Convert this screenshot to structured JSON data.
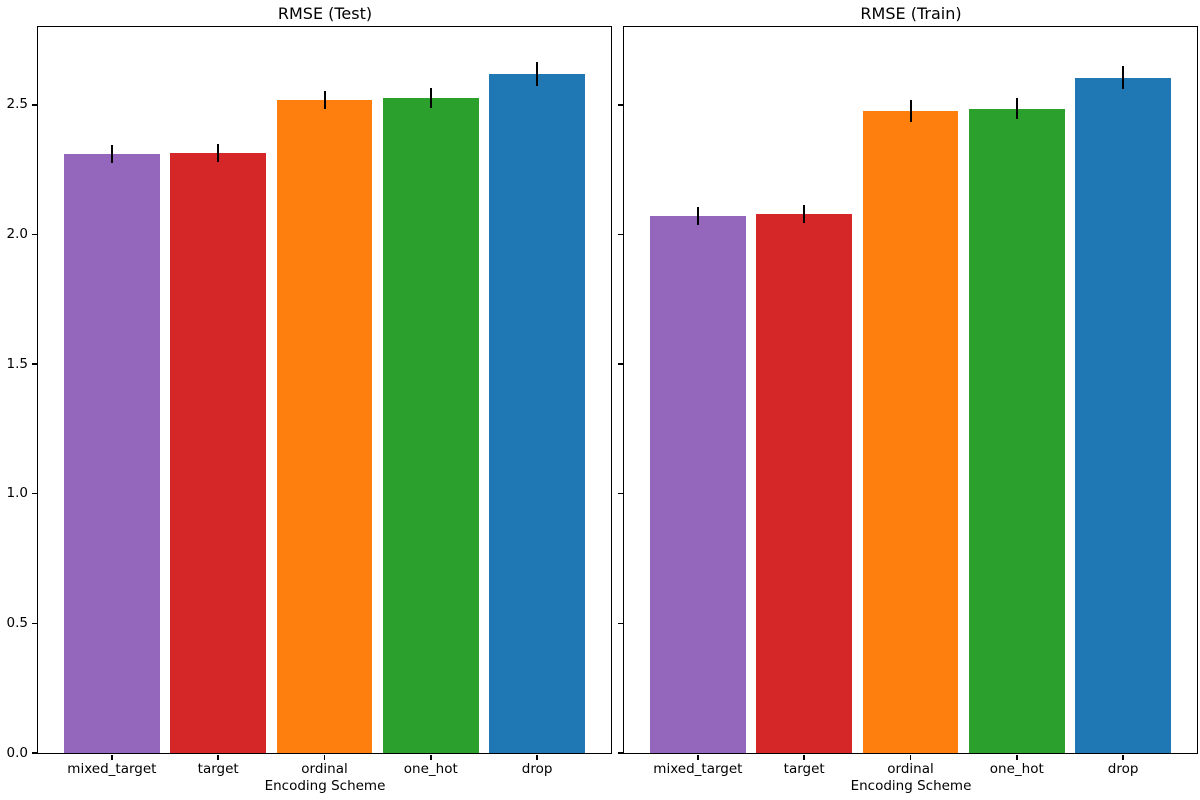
{
  "chart_data": [
    {
      "type": "bar",
      "title": "RMSE (Test)",
      "xlabel": "Encoding Scheme",
      "ylabel": "",
      "categories": [
        "mixed_target",
        "target",
        "ordinal",
        "one_hot",
        "drop"
      ],
      "values": [
        2.31,
        2.315,
        2.52,
        2.525,
        2.62
      ],
      "errors": [
        0.035,
        0.035,
        0.035,
        0.038,
        0.046
      ],
      "bar_colors": [
        "#9467bd",
        "#d62728",
        "#ff7f0e",
        "#2ca02c",
        "#1f77b4"
      ],
      "error_color": "#000000",
      "ylim": [
        0,
        2.8
      ],
      "yticks": [
        "0.0",
        "0.5",
        "1.0",
        "1.5",
        "2.0",
        "2.5"
      ],
      "show_ytick_labels": true,
      "grid": false,
      "legend": null,
      "bar_width_ratio": 0.9
    },
    {
      "type": "bar",
      "title": "RMSE (Train)",
      "xlabel": "Encoding Scheme",
      "ylabel": "",
      "categories": [
        "mixed_target",
        "target",
        "ordinal",
        "one_hot",
        "drop"
      ],
      "values": [
        2.07,
        2.08,
        2.475,
        2.485,
        2.605
      ],
      "errors": [
        0.035,
        0.035,
        0.042,
        0.04,
        0.046
      ],
      "bar_colors": [
        "#9467bd",
        "#d62728",
        "#ff7f0e",
        "#2ca02c",
        "#1f77b4"
      ],
      "error_color": "#000000",
      "ylim": [
        0,
        2.8
      ],
      "yticks": [
        "0.0",
        "0.5",
        "1.0",
        "1.5",
        "2.0",
        "2.5"
      ],
      "show_ytick_labels": false,
      "grid": false,
      "legend": null,
      "bar_width_ratio": 0.9
    }
  ]
}
